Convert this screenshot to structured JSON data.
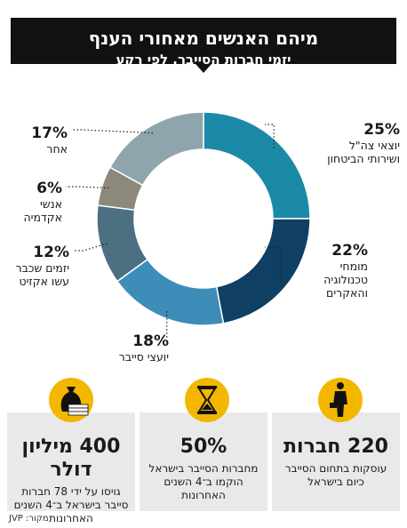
{
  "header": {
    "title": "מיהם האנשים מאחורי הענף",
    "subtitle": "יזמי חברות הסייבר, לפי רקע"
  },
  "chart_data": {
    "type": "pie",
    "donut": true,
    "slices": [
      {
        "value": 25,
        "pct_label": "25%",
        "label_lines": [
          "יוצאי צה\"ל",
          "ושירותי הביטחון"
        ],
        "color": "#1b8aa6"
      },
      {
        "value": 22,
        "pct_label": "22%",
        "label_lines": [
          "מומחי",
          "טכנולוגיה",
          "והאקרים"
        ],
        "color": "#0f3f63"
      },
      {
        "value": 18,
        "pct_label": "18%",
        "label_lines": [
          "יועצי סייבר"
        ],
        "color": "#3e8db8"
      },
      {
        "value": 12,
        "pct_label": "12%",
        "label_lines": [
          "יזמים שכבר",
          "עשו אקזיט"
        ],
        "color": "#4c7082"
      },
      {
        "value": 6,
        "pct_label": "6%",
        "label_lines": [
          "אנשי",
          "אקדמיה"
        ],
        "color": "#8c897a"
      },
      {
        "value": 17,
        "pct_label": "17%",
        "label_lines": [
          "אחר"
        ],
        "color": "#8fa5ad"
      }
    ]
  },
  "stats": [
    {
      "big": "400 מיליון דולר",
      "desc": "גויסו על ידי 78 חברות סייבר בישראל ב־4 השנים האחרונות",
      "icon": "money-bag-icon"
    },
    {
      "big": "50%",
      "desc": "מחברות הסייבר בישראל הוקמו ב־4 השנים האחרונות",
      "icon": "hourglass-icon"
    },
    {
      "big": "220 חברות",
      "desc": "עוסקות בתחום הסייבר כיום בישראל",
      "icon": "businessman-icon"
    }
  ],
  "source": "מקור: JVP",
  "colors": {
    "banner": "#111111",
    "accent": "#f3b700",
    "card": "#e9e9e9"
  }
}
